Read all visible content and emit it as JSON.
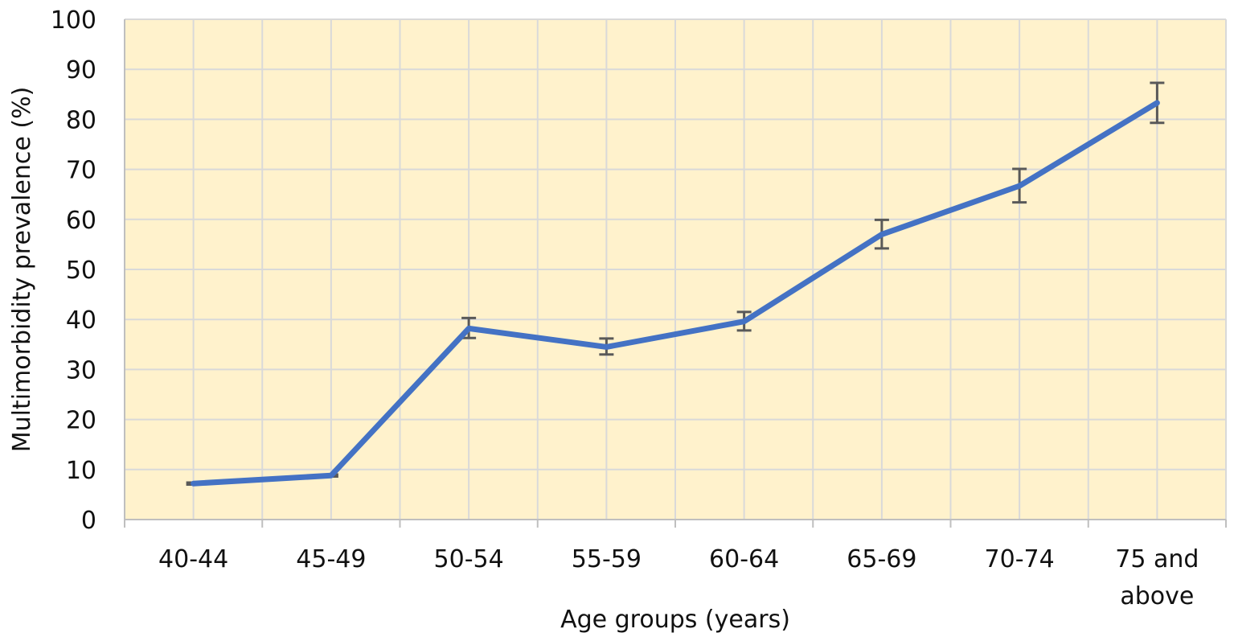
{
  "chart_data": {
    "type": "line",
    "xlabel": "Age groups (years)",
    "ylabel": "Multimorbidity prevalence (%)",
    "ylim": [
      0,
      100
    ],
    "yticks": [
      0,
      10,
      20,
      30,
      40,
      50,
      60,
      70,
      80,
      90,
      100
    ],
    "categories": [
      "40-44",
      "45-49",
      "50-54",
      "55-59",
      "60-64",
      "65-69",
      "70-74",
      "75 and above"
    ],
    "series": [
      {
        "values": [
          7.2,
          8.8,
          38.2,
          34.5,
          39.6,
          57.0,
          66.7,
          83.3
        ],
        "error_low": [
          7.0,
          8.6,
          36.3,
          33.0,
          37.8,
          54.2,
          63.4,
          79.3
        ],
        "error_high": [
          7.4,
          9.0,
          40.3,
          36.2,
          41.5,
          59.9,
          70.1,
          87.3
        ]
      }
    ],
    "grid": true,
    "colors": {
      "plot_background": "#fff2cc",
      "grid": "#d9d9d9",
      "line": "#4472c4",
      "error_bar": "#595959",
      "axis": "#bfbfbf",
      "text": "#111111"
    }
  }
}
